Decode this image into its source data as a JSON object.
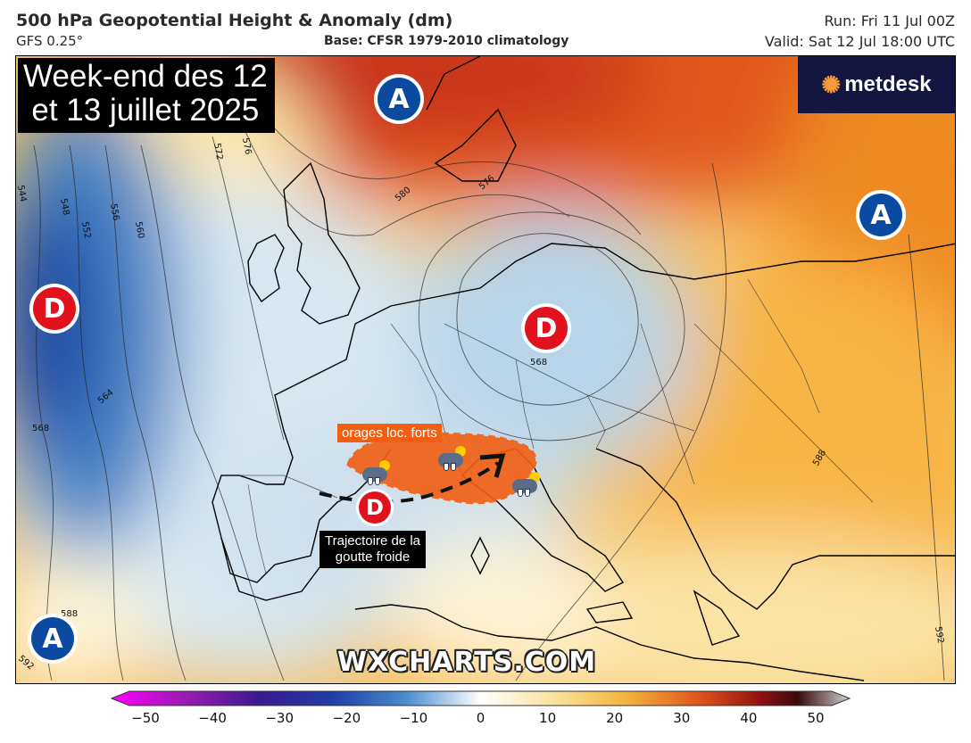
{
  "header": {
    "title": "500 hPa Geopotential Height & Anomaly (dm)",
    "model": "GFS 0.25°",
    "base": "Base: CFSR 1979-2010 climatology",
    "run": "Run: Fri 11 Jul 00Z",
    "valid": "Valid: Sat 12 Jul 18:00 UTC"
  },
  "overlay": {
    "headline_line1": "Week-end des 12",
    "headline_line2": "et 13 juillet 2025",
    "brand": "metdesk",
    "orange_label": "orages loc. forts",
    "trajectory_line1": "Trajectoire de la",
    "trajectory_line2": "goutte froide",
    "watermark": "WXCHARTS.COM"
  },
  "pressure_centers": [
    {
      "name": "high-north-sea",
      "letter": "A",
      "type": "high"
    },
    {
      "name": "high-east",
      "letter": "A",
      "type": "high"
    },
    {
      "name": "high-southwest",
      "letter": "A",
      "type": "high"
    },
    {
      "name": "low-atlantic",
      "letter": "D",
      "type": "low"
    },
    {
      "name": "low-central-europe",
      "letter": "D",
      "type": "low"
    },
    {
      "name": "low-iberia",
      "letter": "D",
      "type": "low"
    }
  ],
  "contour_labels": [
    "544",
    "548",
    "552",
    "556",
    "560",
    "572",
    "576",
    "580",
    "576",
    "568",
    "564",
    "568",
    "588",
    "588",
    "592",
    "592"
  ],
  "colorbar": {
    "ticks": [
      "−50",
      "−40",
      "−30",
      "−20",
      "−10",
      "0",
      "10",
      "20",
      "30",
      "40",
      "50"
    ],
    "colors": [
      "#ff00ff",
      "#9a1bb0",
      "#3b1a8f",
      "#1d3fa6",
      "#4a8fcf",
      "#b9d6ea",
      "#fff8d6",
      "#f3b23a",
      "#e0501a",
      "#8e1010",
      "#3a0a0a",
      "#c8c8c8"
    ]
  },
  "colors": {
    "high_badge": "#0b4aa0",
    "low_badge": "#e1111e",
    "storm_area": "#f25e12",
    "brand_bg": "#141540"
  }
}
